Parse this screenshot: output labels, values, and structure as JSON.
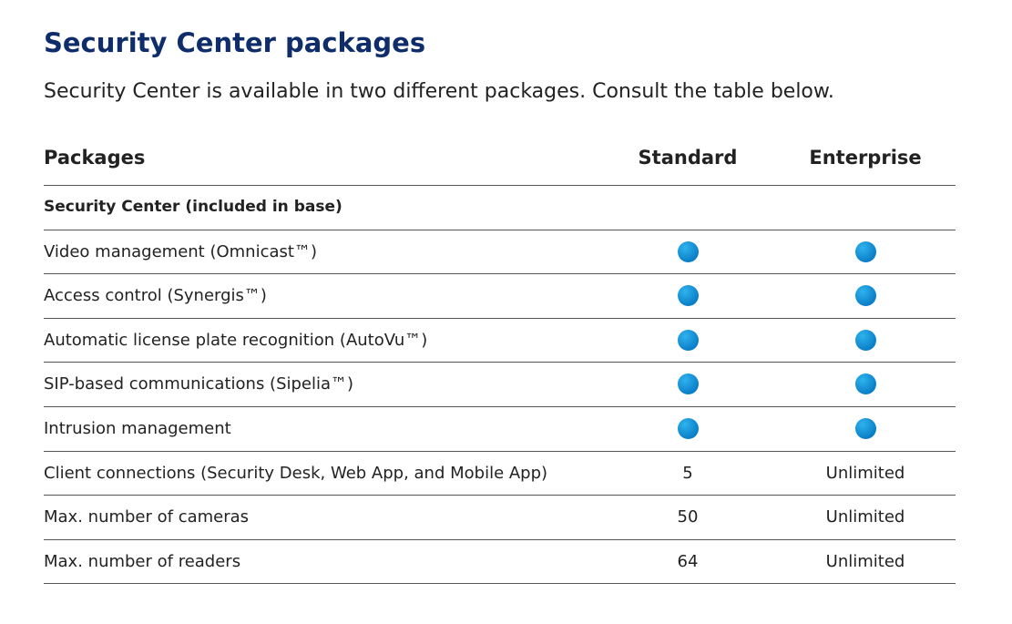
{
  "header": {
    "title": "Security Center packages",
    "subtitle": "Security Center is available in two different packages. Consult the table below."
  },
  "table": {
    "columns": [
      "Packages",
      "Standard",
      "Enterprise"
    ],
    "section": "Security Center (included in base)",
    "rows": [
      [
        "Video management (Omnicast™)",
        true,
        true
      ],
      [
        "Access control (Synergis™)",
        true,
        true
      ],
      [
        "Automatic license plate recognition (AutoVu™)",
        true,
        true
      ],
      [
        "SIP-based communications (Sipelia™)",
        true,
        true
      ],
      [
        "Intrusion management",
        true,
        true
      ],
      [
        "Client connections (Security Desk, Web App, and Mobile App)",
        5,
        "Unlimited"
      ],
      [
        "Max. number of cameras",
        50,
        "Unlimited"
      ],
      [
        "Max. number of readers",
        64,
        "Unlimited"
      ]
    ]
  }
}
